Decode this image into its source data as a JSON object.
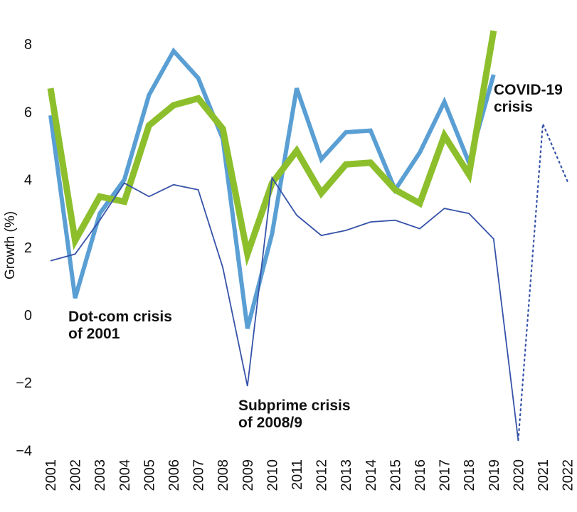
{
  "chart_data": {
    "type": "line",
    "ylabel": "Growth (%)",
    "xlabel": "",
    "ylim": [
      -4,
      8.5
    ],
    "yticks": [
      8,
      6,
      4,
      2,
      0,
      -2,
      -4
    ],
    "ytick_labels": [
      "8",
      "6",
      "4",
      "2",
      "0",
      "−2",
      "−4"
    ],
    "grid": false,
    "legend": "none",
    "categories": [
      "2001",
      "2002",
      "2003",
      "2004",
      "2005",
      "2006",
      "2007",
      "2008",
      "2009",
      "2010",
      "2011",
      "2012",
      "2013",
      "2014",
      "2015",
      "2016",
      "2017",
      "2018",
      "2019",
      "2020",
      "2021",
      "2022"
    ],
    "series": [
      {
        "color": "#5a9fd4",
        "values": [
          5.9,
          0.5,
          3.0,
          4.0,
          6.5,
          7.8,
          7.0,
          5.2,
          -0.4,
          2.4,
          6.7,
          4.6,
          5.4,
          5.45,
          3.7,
          4.8,
          6.3,
          4.5,
          7.1,
          null,
          null,
          null
        ]
      },
      {
        "color": "#8dbf2c",
        "values": [
          6.7,
          2.2,
          3.5,
          3.35,
          5.6,
          6.2,
          6.4,
          5.5,
          1.8,
          3.9,
          4.85,
          3.6,
          4.45,
          4.5,
          3.7,
          3.3,
          5.3,
          4.15,
          8.4,
          null,
          null,
          null
        ]
      },
      {
        "color": "#3552a8",
        "values": [
          1.6,
          1.8,
          2.8,
          3.9,
          3.5,
          3.85,
          3.7,
          1.4,
          -2.1,
          4.05,
          2.95,
          2.35,
          2.5,
          2.75,
          2.8,
          2.55,
          3.15,
          3.0,
          2.25,
          -3.7,
          5.65,
          3.95
        ],
        "dotted_from": "2020"
      }
    ],
    "annotations": [
      {
        "lines": [
          "Dot-com crisis",
          "of 2001"
        ]
      },
      {
        "lines": [
          "Subprime crisis",
          "of 2008/9"
        ]
      },
      {
        "lines": [
          "COVID-19",
          "crisis"
        ]
      }
    ]
  }
}
